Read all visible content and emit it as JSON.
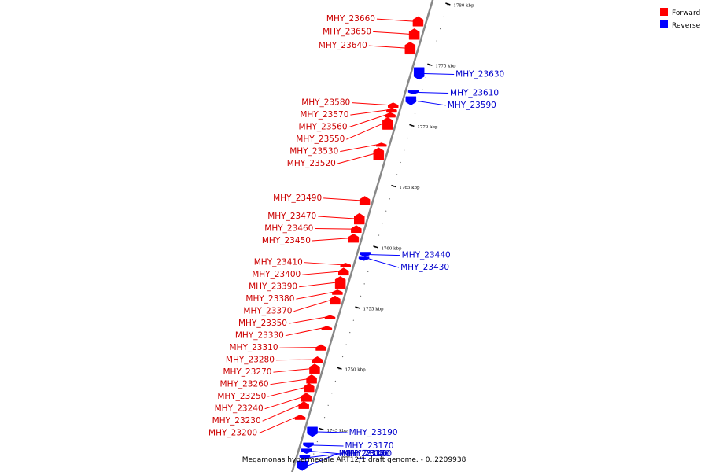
{
  "caption": "Megamonas hypermegale ART12/1 draft genome. - 0..2209938",
  "legend": [
    {
      "label": "Forward",
      "color": "#ff0000"
    },
    {
      "label": "Reverse",
      "color": "#0000ff"
    }
  ],
  "colors": {
    "forward": "#ff0000",
    "reverse": "#0000ff",
    "backbone": "#888888",
    "tick": "#000000"
  },
  "ticks": [
    {
      "label": "1780 kbp",
      "kbp": 1780
    },
    {
      "label": "1775 kbp",
      "kbp": 1775
    },
    {
      "label": "1770 kbp",
      "kbp": 1770
    },
    {
      "label": "1765 kbp",
      "kbp": 1765
    },
    {
      "label": "1760 kbp",
      "kbp": 1760
    },
    {
      "label": "1755 kbp",
      "kbp": 1755
    },
    {
      "label": "1750 kbp",
      "kbp": 1750
    },
    {
      "label": "1745 kbp",
      "kbp": 1745
    }
  ],
  "genes": [
    {
      "name": "MHY_23660",
      "strand": "forward",
      "start_kbp": 1779.0,
      "end_kbp": 1778.2
    },
    {
      "name": "MHY_23650",
      "strand": "forward",
      "start_kbp": 1778.0,
      "end_kbp": 1777.1
    },
    {
      "name": "MHY_23640",
      "strand": "forward",
      "start_kbp": 1776.9,
      "end_kbp": 1775.9
    },
    {
      "name": "MHY_23630",
      "strand": "reverse",
      "start_kbp": 1774.8,
      "end_kbp": 1773.8
    },
    {
      "name": "MHY_23610",
      "strand": "reverse",
      "start_kbp": 1772.9,
      "end_kbp": 1772.6
    },
    {
      "name": "MHY_23590",
      "strand": "reverse",
      "start_kbp": 1772.4,
      "end_kbp": 1771.7
    },
    {
      "name": "MHY_23580",
      "strand": "forward",
      "start_kbp": 1771.9,
      "end_kbp": 1771.5
    },
    {
      "name": "MHY_23570",
      "strand": "forward",
      "start_kbp": 1771.5,
      "end_kbp": 1771.1
    },
    {
      "name": "MHY_23560",
      "strand": "forward",
      "start_kbp": 1771.1,
      "end_kbp": 1770.7
    },
    {
      "name": "MHY_23550",
      "strand": "forward",
      "start_kbp": 1770.7,
      "end_kbp": 1769.7
    },
    {
      "name": "MHY_23530",
      "strand": "forward",
      "start_kbp": 1768.6,
      "end_kbp": 1768.3
    },
    {
      "name": "MHY_23520",
      "strand": "forward",
      "start_kbp": 1768.2,
      "end_kbp": 1767.2
    },
    {
      "name": "MHY_23490",
      "strand": "forward",
      "start_kbp": 1764.2,
      "end_kbp": 1763.5
    },
    {
      "name": "MHY_23470",
      "strand": "forward",
      "start_kbp": 1762.8,
      "end_kbp": 1761.9
    },
    {
      "name": "MHY_23460",
      "strand": "forward",
      "start_kbp": 1761.8,
      "end_kbp": 1761.2
    },
    {
      "name": "MHY_23450",
      "strand": "forward",
      "start_kbp": 1761.1,
      "end_kbp": 1760.4
    },
    {
      "name": "MHY_23440",
      "strand": "reverse",
      "start_kbp": 1759.6,
      "end_kbp": 1759.2
    },
    {
      "name": "MHY_23430",
      "strand": "reverse",
      "start_kbp": 1759.2,
      "end_kbp": 1758.9
    },
    {
      "name": "MHY_23410",
      "strand": "forward",
      "start_kbp": 1758.7,
      "end_kbp": 1758.4
    },
    {
      "name": "MHY_23400",
      "strand": "forward",
      "start_kbp": 1758.3,
      "end_kbp": 1757.7
    },
    {
      "name": "MHY_23390",
      "strand": "forward",
      "start_kbp": 1757.6,
      "end_kbp": 1756.6
    },
    {
      "name": "MHY_23380",
      "strand": "forward",
      "start_kbp": 1756.5,
      "end_kbp": 1756.1
    },
    {
      "name": "MHY_23370",
      "strand": "forward",
      "start_kbp": 1756.0,
      "end_kbp": 1755.3
    },
    {
      "name": "MHY_23350",
      "strand": "forward",
      "start_kbp": 1754.4,
      "end_kbp": 1754.1
    },
    {
      "name": "MHY_23330",
      "strand": "forward",
      "start_kbp": 1753.5,
      "end_kbp": 1753.2
    },
    {
      "name": "MHY_23310",
      "strand": "forward",
      "start_kbp": 1752.0,
      "end_kbp": 1751.5
    },
    {
      "name": "MHY_23280",
      "strand": "forward",
      "start_kbp": 1751.0,
      "end_kbp": 1750.5
    },
    {
      "name": "MHY_23270",
      "strand": "forward",
      "start_kbp": 1750.4,
      "end_kbp": 1749.6
    },
    {
      "name": "MHY_23260",
      "strand": "forward",
      "start_kbp": 1749.5,
      "end_kbp": 1748.8
    },
    {
      "name": "MHY_23250",
      "strand": "forward",
      "start_kbp": 1748.8,
      "end_kbp": 1748.1
    },
    {
      "name": "MHY_23240",
      "strand": "forward",
      "start_kbp": 1748.0,
      "end_kbp": 1747.3
    },
    {
      "name": "MHY_23230",
      "strand": "forward",
      "start_kbp": 1747.3,
      "end_kbp": 1746.7
    },
    {
      "name": "MHY_23200",
      "strand": "forward",
      "start_kbp": 1746.2,
      "end_kbp": 1745.8
    },
    {
      "name": "MHY_23190",
      "strand": "reverse",
      "start_kbp": 1745.2,
      "end_kbp": 1744.4
    },
    {
      "name": "MHY_23170",
      "strand": "reverse",
      "start_kbp": 1743.9,
      "end_kbp": 1743.5
    },
    {
      "name": "MHY_23160",
      "strand": "reverse",
      "start_kbp": 1743.4,
      "end_kbp": 1743.0
    },
    {
      "name": "MHY_23150",
      "strand": "reverse",
      "start_kbp": 1742.9,
      "end_kbp": 1742.5
    },
    {
      "name": "MHY_23140",
      "strand": "reverse",
      "start_kbp": 1742.4,
      "end_kbp": 1741.6
    }
  ]
}
